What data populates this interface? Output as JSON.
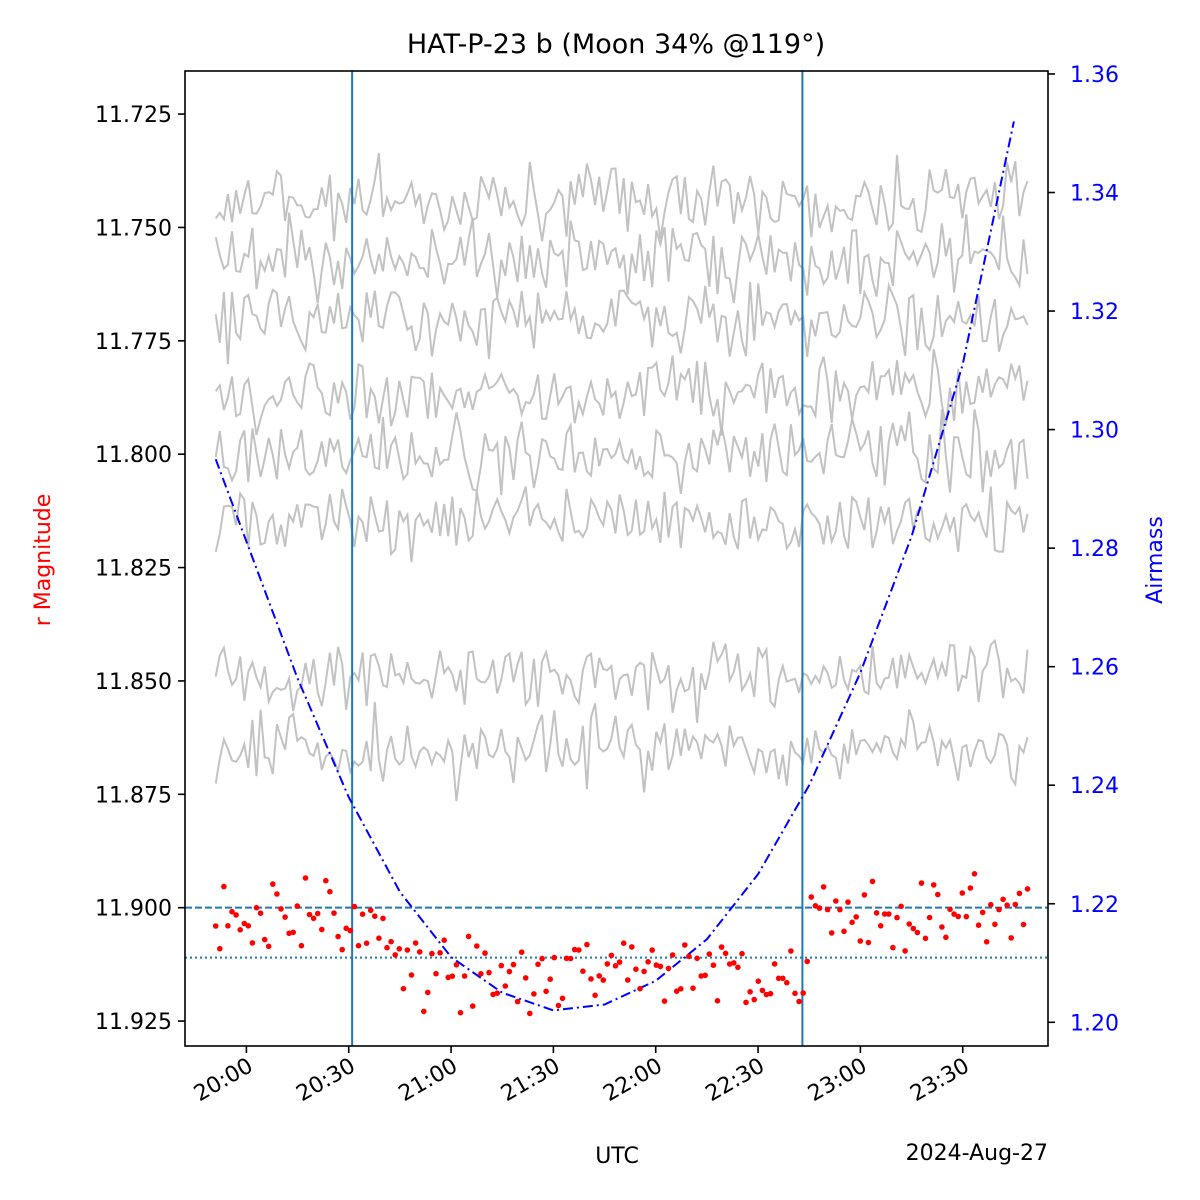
{
  "chart_data": {
    "type": "line",
    "title": "HAT-P-23 b (Moon 34% @119°)",
    "xlabel": "UTC",
    "date_label": "2024-Aug-27",
    "ylabel": "r Magnitude",
    "y2label": "Airmass",
    "xlim": [
      "19:42",
      "23:55"
    ],
    "ylim": [
      11.9305,
      11.7155
    ],
    "y_inverted": true,
    "y2lim": [
      1.196,
      1.3605
    ],
    "x_ticks": [
      "20:00",
      "20:30",
      "21:00",
      "21:30",
      "22:00",
      "22:30",
      "23:00",
      "23:30"
    ],
    "y_ticks": [
      "11.725",
      "11.750",
      "11.775",
      "11.800",
      "11.825",
      "11.850",
      "11.875",
      "11.900",
      "11.925"
    ],
    "y2_ticks": [
      "1.20",
      "1.22",
      "1.24",
      "1.26",
      "1.28",
      "1.30",
      "1.32",
      "1.34",
      "1.36"
    ],
    "transit_ingress": "20:31",
    "transit_egress": "22:43",
    "baseline_magnitude": 11.9,
    "in_transit_magnitude": 11.911,
    "colors": {
      "target": "#ff0000",
      "comparison": "#bbbbbb",
      "airmass": "#0000ff",
      "markers": "#1f77b4",
      "left_label": "#ff0000",
      "right_axis": "#0000ff"
    },
    "airmass_series": {
      "name": "",
      "style": "dash-dot",
      "x": [
        "19:51",
        "20:15",
        "20:30",
        "20:45",
        "21:00",
        "21:15",
        "21:30",
        "21:45",
        "22:00",
        "22:15",
        "22:30",
        "22:45",
        "23:00",
        "23:15",
        "23:30",
        "23:45"
      ],
      "y": [
        1.295,
        1.258,
        1.238,
        1.222,
        1.211,
        1.205,
        1.202,
        1.203,
        1.207,
        1.214,
        1.225,
        1.24,
        1.259,
        1.282,
        1.311,
        1.352
      ]
    },
    "comparison_series": [
      {
        "start": "19:51",
        "end": "23:49",
        "mean": 11.744,
        "spread": 0.004
      },
      {
        "start": "19:51",
        "end": "23:49",
        "mean": 11.757,
        "spread": 0.004
      },
      {
        "start": "19:51",
        "end": "23:49",
        "mean": 11.77,
        "spread": 0.004
      },
      {
        "start": "19:51",
        "end": "23:49",
        "mean": 11.786,
        "spread": 0.004
      },
      {
        "start": "19:51",
        "end": "23:49",
        "mean": 11.8,
        "spread": 0.004
      },
      {
        "start": "19:51",
        "end": "23:49",
        "mean": 11.815,
        "spread": 0.004
      },
      {
        "start": "19:51",
        "end": "23:49",
        "mean": 11.849,
        "spread": 0.004
      },
      {
        "start": "19:51",
        "end": "23:49",
        "mean": 11.865,
        "spread": 0.004
      }
    ],
    "target_series": {
      "name": "",
      "start": "19:51",
      "end": "23:49",
      "out_of_transit_mean": 11.902,
      "in_transit_mean": 11.915,
      "scatter": 0.004
    }
  }
}
